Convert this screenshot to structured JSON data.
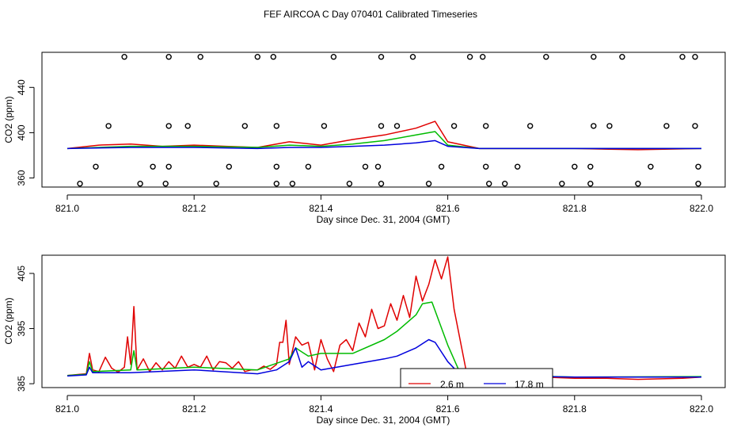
{
  "title": "FEF AIRCOA C  Day 070401  Calibrated Timeseries",
  "chart_data": [
    {
      "type": "scatter+line",
      "xlabel": "Day since Dec. 31, 2004 (GMT)",
      "ylabel": "CO2 (ppm)",
      "xlim": [
        821.0,
        822.0
      ],
      "ylim": [
        352,
        471
      ],
      "x_ticks": [
        "821.0",
        "821.2",
        "821.4",
        "821.6",
        "821.8",
        "822.0"
      ],
      "y_ticks": [
        "360",
        "400",
        "440"
      ],
      "series": [
        {
          "name": "2.6 m",
          "color": "#e00000",
          "x": [
            821.0,
            821.05,
            821.1,
            821.15,
            821.2,
            821.25,
            821.3,
            821.35,
            821.4,
            821.45,
            821.5,
            821.55,
            821.58,
            821.6,
            821.65,
            821.7,
            821.8,
            821.9,
            822.0
          ],
          "y": [
            386,
            389,
            390,
            388,
            389,
            388,
            387,
            392,
            389,
            394,
            398,
            404,
            410,
            392,
            386,
            386,
            386,
            385,
            386
          ]
        },
        {
          "name": "",
          "color": "#00bb00",
          "x": [
            821.0,
            821.1,
            821.2,
            821.3,
            821.35,
            821.4,
            821.45,
            821.5,
            821.55,
            821.58,
            821.6,
            821.65,
            821.8,
            822.0
          ],
          "y": [
            386,
            388,
            388,
            387,
            389,
            388,
            390,
            393,
            398,
            401,
            389,
            386,
            386,
            386
          ]
        },
        {
          "name": "17.8 m",
          "color": "#0000dd",
          "x": [
            821.0,
            821.1,
            821.2,
            821.3,
            821.35,
            821.4,
            821.45,
            821.5,
            821.55,
            821.58,
            821.6,
            821.65,
            821.8,
            822.0
          ],
          "y": [
            386,
            387,
            387,
            386,
            387,
            387,
            388,
            389,
            391,
            393,
            388,
            386,
            386,
            386
          ]
        }
      ],
      "points": {
        "x": [
          821.09,
          821.16,
          821.21,
          821.3,
          821.325,
          821.42,
          821.495,
          821.545,
          821.635,
          821.655,
          821.755,
          821.83,
          821.875,
          821.97,
          821.99,
          821.065,
          821.16,
          821.19,
          821.28,
          821.33,
          821.405,
          821.495,
          821.52,
          821.61,
          821.66,
          821.73,
          821.83,
          821.855,
          821.945,
          821.99,
          821.045,
          821.135,
          821.16,
          821.255,
          821.33,
          821.38,
          821.47,
          821.49,
          821.59,
          821.66,
          821.71,
          821.8,
          821.825,
          821.92,
          821.995,
          821.02,
          821.115,
          821.155,
          821.235,
          821.33,
          821.355,
          821.445,
          821.495,
          821.57,
          821.665,
          821.69,
          821.78,
          821.825,
          821.9,
          821.995
        ],
        "y": [
          467,
          467,
          467,
          467,
          467,
          467,
          467,
          467,
          467,
          467,
          467,
          467,
          467,
          467,
          467,
          406,
          406,
          406,
          406,
          406,
          406,
          406,
          406,
          406,
          406,
          406,
          406,
          406,
          406,
          406,
          370,
          370,
          370,
          370,
          370,
          370,
          370,
          370,
          370,
          370,
          370,
          370,
          370,
          370,
          370,
          355,
          355,
          355,
          355,
          355,
          355,
          355,
          355,
          355,
          355,
          355,
          355,
          355,
          355,
          355
        ]
      }
    },
    {
      "type": "line",
      "xlabel": "Day since Dec. 31, 2004 (GMT)",
      "ylabel": "CO2 (ppm)",
      "xlim": [
        821.0,
        822.0
      ],
      "ylim": [
        384.3,
        408.3
      ],
      "x_ticks": [
        "821.0",
        "821.2",
        "821.4",
        "821.6",
        "821.8",
        "822.0"
      ],
      "y_ticks": [
        "385",
        "395",
        "405"
      ],
      "series": [
        {
          "name": "2.6 m",
          "color": "#e00000",
          "x": [
            821.0,
            821.01,
            821.02,
            821.03,
            821.035,
            821.04,
            821.05,
            821.06,
            821.07,
            821.08,
            821.09,
            821.095,
            821.1,
            821.105,
            821.11,
            821.12,
            821.13,
            821.14,
            821.15,
            821.16,
            821.17,
            821.18,
            821.19,
            821.2,
            821.21,
            821.22,
            821.23,
            821.24,
            821.25,
            821.26,
            821.27,
            821.28,
            821.29,
            821.3,
            821.31,
            821.32,
            821.33,
            821.335,
            821.34,
            821.345,
            821.35,
            821.36,
            821.37,
            821.38,
            821.39,
            821.4,
            821.41,
            821.42,
            821.43,
            821.44,
            821.45,
            821.46,
            821.47,
            821.48,
            821.49,
            821.5,
            821.51,
            821.52,
            821.53,
            821.54,
            821.55,
            821.56,
            821.57,
            821.58,
            821.59,
            821.6,
            821.61,
            821.63,
            821.66,
            821.7,
            821.75,
            821.8,
            821.85,
            821.9,
            821.97,
            822.0
          ],
          "y": [
            386.5,
            386.6,
            386.7,
            386.8,
            390.5,
            387.5,
            387.2,
            389.8,
            387.8,
            387.1,
            388.0,
            393.5,
            388.5,
            399.0,
            387.5,
            389.5,
            387.2,
            388.8,
            387.5,
            389.0,
            387.8,
            390.0,
            388.0,
            388.5,
            388.0,
            390.0,
            387.5,
            389.0,
            388.8,
            387.8,
            389.0,
            387.2,
            387.5,
            387.5,
            388.2,
            387.6,
            388.5,
            392.5,
            392.5,
            396.5,
            388.5,
            393.5,
            392.0,
            392.5,
            387.5,
            393.0,
            389.5,
            387.2,
            392.0,
            393.0,
            391.0,
            396.0,
            393.5,
            398.5,
            395.0,
            395.5,
            399.5,
            396.5,
            401.0,
            397.0,
            404.5,
            400.0,
            403.0,
            407.5,
            404.0,
            408.0,
            398.5,
            386.8,
            386.6,
            386.4,
            386.2,
            386.0,
            386.0,
            385.8,
            386.0,
            386.2
          ]
        },
        {
          "name": "",
          "color": "#00bb00",
          "x": [
            821.0,
            821.03,
            821.035,
            821.04,
            821.1,
            821.105,
            821.11,
            821.2,
            821.3,
            821.35,
            821.36,
            821.38,
            821.4,
            821.45,
            821.5,
            821.52,
            821.55,
            821.56,
            821.575,
            821.6,
            821.62,
            821.7,
            821.8,
            822.0
          ],
          "y": [
            386.5,
            386.7,
            389.0,
            387.2,
            387.5,
            391.0,
            387.5,
            388.0,
            387.5,
            389.5,
            391.5,
            390.0,
            390.5,
            390.5,
            393.0,
            394.5,
            397.5,
            399.5,
            399.8,
            392.0,
            386.8,
            386.5,
            386.2,
            386.3
          ]
        },
        {
          "name": "17.8 m",
          "color": "#0000dd",
          "x": [
            821.0,
            821.03,
            821.035,
            821.04,
            821.1,
            821.2,
            821.3,
            821.33,
            821.35,
            821.36,
            821.37,
            821.38,
            821.4,
            821.45,
            821.5,
            821.52,
            821.55,
            821.57,
            821.58,
            821.6,
            821.62,
            821.7,
            821.8,
            822.0
          ],
          "y": [
            386.4,
            386.6,
            388.0,
            387.0,
            387.0,
            387.5,
            386.8,
            387.5,
            389.0,
            391.5,
            388.0,
            389.0,
            387.5,
            388.5,
            389.5,
            390.0,
            391.5,
            393.0,
            392.5,
            389.0,
            386.6,
            386.4,
            386.2,
            386.2
          ]
        }
      ],
      "legend_position": "bottom-center"
    }
  ]
}
